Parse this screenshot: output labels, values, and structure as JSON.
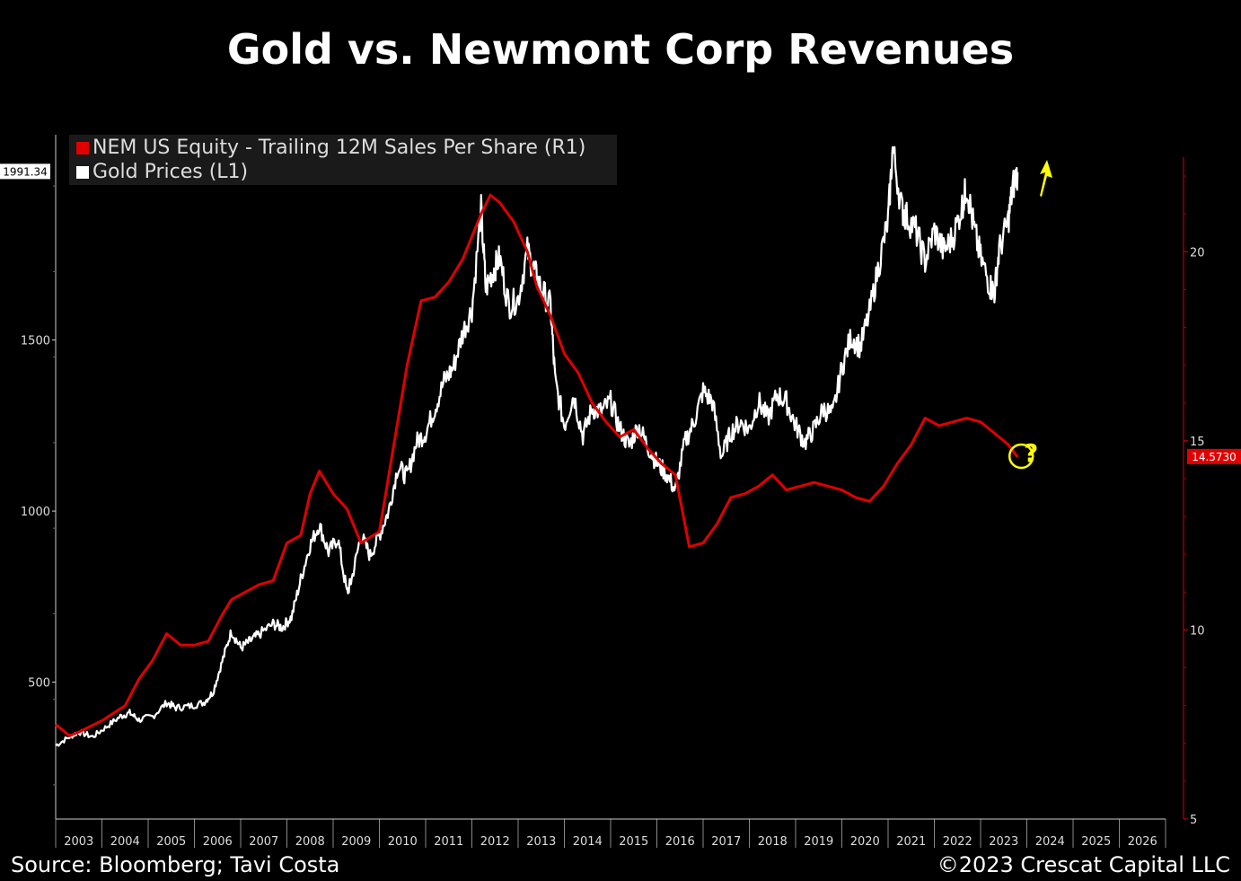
{
  "title": "Gold vs. Newmont Corp Revenues",
  "footer": {
    "source": "Source: Bloomberg; Tavi Costa",
    "copyright": "©2023 Crescat Capital LLC"
  },
  "colors": {
    "gold_line": "#ffffff",
    "nem_line": "#e00000",
    "annotation": "#ffff00",
    "axis": "#cccccc"
  },
  "annotation": {
    "question_mark": "?"
  },
  "chart_data": {
    "type": "line",
    "title": "Gold vs. Newmont Corp Revenues",
    "legend": [
      "NEM US Equity - Trailing 12M Sales Per Share (R1)",
      "Gold Prices (L1)"
    ],
    "legend_placement": "top-left",
    "x_tick_labels": [
      "2003",
      "2004",
      "2005",
      "2006",
      "2007",
      "2008",
      "2009",
      "2010",
      "2011",
      "2012",
      "2013",
      "2014",
      "2015",
      "2016",
      "2017",
      "2018",
      "2019",
      "2020",
      "2021",
      "2022",
      "2023",
      "2024",
      "2025",
      "2026"
    ],
    "x_range": [
      2002.5,
      2026.5
    ],
    "left_axis": {
      "ticks": [
        "500",
        "1000",
        "1500"
      ],
      "range": [
        100,
        2100
      ],
      "last_value": "1991.34"
    },
    "right_axis": {
      "ticks": [
        "5",
        "10",
        "15",
        "20"
      ],
      "range": [
        5,
        22.5
      ],
      "last_value": "14.5730"
    },
    "series": [
      {
        "name": "Gold Prices (L1)",
        "axis": "left",
        "points": [
          [
            2002.5,
            315
          ],
          [
            2002.8,
            340
          ],
          [
            2003.0,
            355
          ],
          [
            2003.3,
            340
          ],
          [
            2003.6,
            370
          ],
          [
            2003.9,
            400
          ],
          [
            2004.1,
            410
          ],
          [
            2004.3,
            390
          ],
          [
            2004.6,
            400
          ],
          [
            2004.9,
            440
          ],
          [
            2005.1,
            425
          ],
          [
            2005.4,
            430
          ],
          [
            2005.7,
            440
          ],
          [
            2005.9,
            470
          ],
          [
            2006.1,
            560
          ],
          [
            2006.3,
            650
          ],
          [
            2006.5,
            600
          ],
          [
            2006.7,
            620
          ],
          [
            2006.9,
            640
          ],
          [
            2007.2,
            670
          ],
          [
            2007.4,
            660
          ],
          [
            2007.6,
            690
          ],
          [
            2007.8,
            800
          ],
          [
            2008.0,
            900
          ],
          [
            2008.2,
            960
          ],
          [
            2008.4,
            880
          ],
          [
            2008.6,
            920
          ],
          [
            2008.8,
            760
          ],
          [
            2008.9,
            800
          ],
          [
            2009.1,
            930
          ],
          [
            2009.3,
            870
          ],
          [
            2009.5,
            930
          ],
          [
            2009.7,
            1000
          ],
          [
            2009.9,
            1130
          ],
          [
            2010.1,
            1100
          ],
          [
            2010.3,
            1200
          ],
          [
            2010.5,
            1230
          ],
          [
            2010.7,
            1300
          ],
          [
            2010.9,
            1380
          ],
          [
            2011.1,
            1420
          ],
          [
            2011.3,
            1520
          ],
          [
            2011.5,
            1590
          ],
          [
            2011.7,
            1880
          ],
          [
            2011.8,
            1650
          ],
          [
            2011.95,
            1700
          ],
          [
            2012.1,
            1740
          ],
          [
            2012.3,
            1600
          ],
          [
            2012.5,
            1620
          ],
          [
            2012.7,
            1760
          ],
          [
            2012.85,
            1700
          ],
          [
            2013.0,
            1650
          ],
          [
            2013.2,
            1600
          ],
          [
            2013.3,
            1380
          ],
          [
            2013.5,
            1250
          ],
          [
            2013.7,
            1340
          ],
          [
            2013.9,
            1220
          ],
          [
            2014.1,
            1300
          ],
          [
            2014.3,
            1290
          ],
          [
            2014.5,
            1320
          ],
          [
            2014.7,
            1240
          ],
          [
            2014.9,
            1190
          ],
          [
            2015.1,
            1250
          ],
          [
            2015.3,
            1190
          ],
          [
            2015.5,
            1140
          ],
          [
            2015.7,
            1110
          ],
          [
            2015.9,
            1060
          ],
          [
            2016.1,
            1200
          ],
          [
            2016.3,
            1260
          ],
          [
            2016.5,
            1350
          ],
          [
            2016.7,
            1320
          ],
          [
            2016.9,
            1160
          ],
          [
            2017.1,
            1230
          ],
          [
            2017.3,
            1260
          ],
          [
            2017.5,
            1240
          ],
          [
            2017.7,
            1320
          ],
          [
            2017.9,
            1270
          ],
          [
            2018.1,
            1340
          ],
          [
            2018.3,
            1320
          ],
          [
            2018.5,
            1250
          ],
          [
            2018.7,
            1200
          ],
          [
            2018.9,
            1240
          ],
          [
            2019.1,
            1300
          ],
          [
            2019.3,
            1280
          ],
          [
            2019.5,
            1420
          ],
          [
            2019.7,
            1510
          ],
          [
            2019.9,
            1480
          ],
          [
            2020.1,
            1580
          ],
          [
            2020.3,
            1720
          ],
          [
            2020.5,
            1850
          ],
          [
            2020.6,
            2060
          ],
          [
            2020.8,
            1880
          ],
          [
            2020.9,
            1860
          ],
          [
            2021.1,
            1820
          ],
          [
            2021.3,
            1730
          ],
          [
            2021.5,
            1820
          ],
          [
            2021.7,
            1760
          ],
          [
            2021.9,
            1800
          ],
          [
            2022.1,
            1890
          ],
          [
            2022.2,
            1950
          ],
          [
            2022.35,
            1830
          ],
          [
            2022.5,
            1740
          ],
          [
            2022.7,
            1660
          ],
          [
            2022.8,
            1640
          ],
          [
            2022.9,
            1760
          ],
          [
            2023.1,
            1850
          ],
          [
            2023.2,
            1950
          ],
          [
            2023.3,
            1990
          ]
        ]
      },
      {
        "name": "NEM US Equity - Trailing 12M Sales Per Share (R1)",
        "axis": "right",
        "points": [
          [
            2002.5,
            7.5
          ],
          [
            2002.8,
            7.2
          ],
          [
            2003.0,
            7.3
          ],
          [
            2003.5,
            7.6
          ],
          [
            2004.0,
            8.0
          ],
          [
            2004.3,
            8.7
          ],
          [
            2004.6,
            9.2
          ],
          [
            2004.9,
            9.9
          ],
          [
            2005.2,
            9.6
          ],
          [
            2005.5,
            9.6
          ],
          [
            2005.8,
            9.7
          ],
          [
            2006.1,
            10.4
          ],
          [
            2006.3,
            10.8
          ],
          [
            2006.6,
            11.0
          ],
          [
            2006.9,
            11.2
          ],
          [
            2007.2,
            11.3
          ],
          [
            2007.5,
            12.3
          ],
          [
            2007.8,
            12.5
          ],
          [
            2008.0,
            13.6
          ],
          [
            2008.2,
            14.2
          ],
          [
            2008.5,
            13.6
          ],
          [
            2008.8,
            13.2
          ],
          [
            2009.1,
            12.3
          ],
          [
            2009.5,
            12.6
          ],
          [
            2009.8,
            14.8
          ],
          [
            2010.1,
            17.0
          ],
          [
            2010.4,
            18.7
          ],
          [
            2010.7,
            18.8
          ],
          [
            2011.0,
            19.2
          ],
          [
            2011.3,
            19.8
          ],
          [
            2011.7,
            21.0
          ],
          [
            2011.9,
            21.5
          ],
          [
            2012.1,
            21.3
          ],
          [
            2012.4,
            20.8
          ],
          [
            2012.7,
            20.0
          ],
          [
            2012.9,
            19.1
          ],
          [
            2013.2,
            18.3
          ],
          [
            2013.5,
            17.3
          ],
          [
            2013.8,
            16.8
          ],
          [
            2014.1,
            16.0
          ],
          [
            2014.4,
            15.5
          ],
          [
            2014.7,
            15.1
          ],
          [
            2015.0,
            15.3
          ],
          [
            2015.3,
            14.8
          ],
          [
            2015.6,
            14.4
          ],
          [
            2015.9,
            14.1
          ],
          [
            2016.2,
            12.2
          ],
          [
            2016.5,
            12.3
          ],
          [
            2016.8,
            12.8
          ],
          [
            2017.1,
            13.5
          ],
          [
            2017.4,
            13.6
          ],
          [
            2017.7,
            13.8
          ],
          [
            2018.0,
            14.1
          ],
          [
            2018.3,
            13.7
          ],
          [
            2018.6,
            13.8
          ],
          [
            2018.9,
            13.9
          ],
          [
            2019.2,
            13.8
          ],
          [
            2019.5,
            13.7
          ],
          [
            2019.8,
            13.5
          ],
          [
            2020.1,
            13.4
          ],
          [
            2020.4,
            13.8
          ],
          [
            2020.7,
            14.4
          ],
          [
            2021.0,
            14.9
          ],
          [
            2021.3,
            15.6
          ],
          [
            2021.6,
            15.4
          ],
          [
            2021.9,
            15.5
          ],
          [
            2022.2,
            15.6
          ],
          [
            2022.5,
            15.5
          ],
          [
            2022.8,
            15.2
          ],
          [
            2023.1,
            14.9
          ],
          [
            2023.3,
            14.57
          ]
        ]
      }
    ]
  }
}
